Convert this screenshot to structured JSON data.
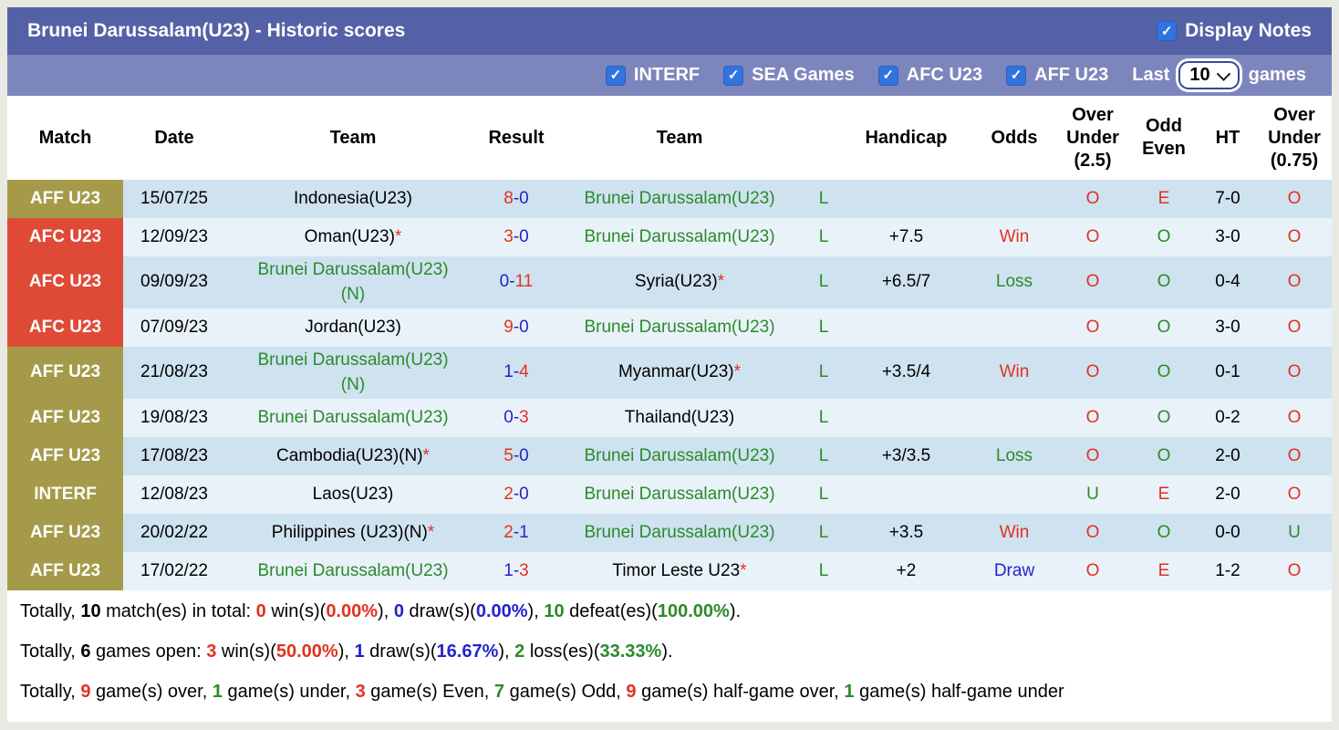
{
  "title_bar": {
    "title": "Brunei Darussalam(U23) - Historic scores",
    "display_notes_label": "Display Notes",
    "display_notes_checked": true
  },
  "filter_bar": {
    "checkboxes": [
      {
        "label": "INTERF",
        "checked": true
      },
      {
        "label": "SEA Games",
        "checked": true
      },
      {
        "label": "AFC U23",
        "checked": true
      },
      {
        "label": "AFF U23",
        "checked": true
      }
    ],
    "last_label": "Last",
    "games_count": "10",
    "games_label": "games"
  },
  "colors": {
    "accent_red": "#e03220",
    "accent_green": "#2b8a2b",
    "accent_blue": "#2323cc",
    "badge_olive": "#a59a4a",
    "badge_red": "#df4a37",
    "title_bg": "#5561a6",
    "filter_bg": "#7d86bc",
    "checkbox_blue": "#3273e0",
    "row_dark": "#cfe2f0",
    "row_light": "#e9f2f9"
  },
  "table": {
    "headers": [
      {
        "key": "match",
        "lines": [
          "Match"
        ]
      },
      {
        "key": "date",
        "lines": [
          "Date"
        ]
      },
      {
        "key": "team1",
        "lines": [
          "Team"
        ]
      },
      {
        "key": "result",
        "lines": [
          "Result"
        ]
      },
      {
        "key": "team2",
        "lines": [
          "Team"
        ]
      },
      {
        "key": "letter",
        "lines": [
          ""
        ]
      },
      {
        "key": "handicap",
        "lines": [
          "Handicap"
        ]
      },
      {
        "key": "odds",
        "lines": [
          "Odds"
        ]
      },
      {
        "key": "over-under-2-5",
        "lines": [
          "Over",
          "Under",
          "(2.5)"
        ]
      },
      {
        "key": "odd-even",
        "lines": [
          "Odd",
          "Even"
        ]
      },
      {
        "key": "ht",
        "lines": [
          "HT"
        ]
      },
      {
        "key": "over-under-0-75",
        "lines": [
          "Over",
          "Under",
          "(0.75)"
        ]
      }
    ],
    "rows": [
      {
        "competition": "AFF U23",
        "badge": "olive",
        "date": "15/07/25",
        "team1": {
          "lines": [
            "Indonesia(U23)"
          ],
          "color": "black",
          "star": false
        },
        "result": {
          "left": "8",
          "left_color": "red",
          "right": "0",
          "right_color": "blue"
        },
        "team2": {
          "lines": [
            "Brunei Darussalam(U23)"
          ],
          "color": "green",
          "star": false
        },
        "letter": "L",
        "handicap": "",
        "odds": {
          "text": "",
          "color": "black"
        },
        "ou25": {
          "text": "O",
          "color": "red"
        },
        "oddeven": {
          "text": "E",
          "color": "red"
        },
        "ht": "7-0",
        "ou075": {
          "text": "O",
          "color": "red"
        },
        "shade": "dark"
      },
      {
        "competition": "AFC U23",
        "badge": "red",
        "date": "12/09/23",
        "team1": {
          "lines": [
            "Oman(U23)"
          ],
          "color": "black",
          "star": true
        },
        "result": {
          "left": "3",
          "left_color": "red",
          "right": "0",
          "right_color": "blue"
        },
        "team2": {
          "lines": [
            "Brunei Darussalam(U23)"
          ],
          "color": "green",
          "star": false
        },
        "letter": "L",
        "handicap": "+7.5",
        "odds": {
          "text": "Win",
          "color": "red"
        },
        "ou25": {
          "text": "O",
          "color": "red"
        },
        "oddeven": {
          "text": "O",
          "color": "green"
        },
        "ht": "3-0",
        "ou075": {
          "text": "O",
          "color": "red"
        },
        "shade": "light"
      },
      {
        "competition": "AFC U23",
        "badge": "red",
        "date": "09/09/23",
        "team1": {
          "lines": [
            "Brunei Darussalam(U23)",
            "(N)"
          ],
          "color": "green",
          "star": false
        },
        "result": {
          "left": "0",
          "left_color": "blue",
          "right": "11",
          "right_color": "red"
        },
        "team2": {
          "lines": [
            "Syria(U23)"
          ],
          "color": "black",
          "star": true
        },
        "letter": "L",
        "handicap": "+6.5/7",
        "odds": {
          "text": "Loss",
          "color": "green"
        },
        "ou25": {
          "text": "O",
          "color": "red"
        },
        "oddeven": {
          "text": "O",
          "color": "green"
        },
        "ht": "0-4",
        "ou075": {
          "text": "O",
          "color": "red"
        },
        "shade": "dark"
      },
      {
        "competition": "AFC U23",
        "badge": "red",
        "date": "07/09/23",
        "team1": {
          "lines": [
            "Jordan(U23)"
          ],
          "color": "black",
          "star": false
        },
        "result": {
          "left": "9",
          "left_color": "red",
          "right": "0",
          "right_color": "blue"
        },
        "team2": {
          "lines": [
            "Brunei Darussalam(U23)"
          ],
          "color": "green",
          "star": false
        },
        "letter": "L",
        "handicap": "",
        "odds": {
          "text": "",
          "color": "black"
        },
        "ou25": {
          "text": "O",
          "color": "red"
        },
        "oddeven": {
          "text": "O",
          "color": "green"
        },
        "ht": "3-0",
        "ou075": {
          "text": "O",
          "color": "red"
        },
        "shade": "light"
      },
      {
        "competition": "AFF U23",
        "badge": "olive",
        "date": "21/08/23",
        "team1": {
          "lines": [
            "Brunei Darussalam(U23)",
            "(N)"
          ],
          "color": "green",
          "star": false
        },
        "result": {
          "left": "1",
          "left_color": "blue",
          "right": "4",
          "right_color": "red"
        },
        "team2": {
          "lines": [
            "Myanmar(U23)"
          ],
          "color": "black",
          "star": true
        },
        "letter": "L",
        "handicap": "+3.5/4",
        "odds": {
          "text": "Win",
          "color": "red"
        },
        "ou25": {
          "text": "O",
          "color": "red"
        },
        "oddeven": {
          "text": "O",
          "color": "green"
        },
        "ht": "0-1",
        "ou075": {
          "text": "O",
          "color": "red"
        },
        "shade": "dark"
      },
      {
        "competition": "AFF U23",
        "badge": "olive",
        "date": "19/08/23",
        "team1": {
          "lines": [
            "Brunei Darussalam(U23)"
          ],
          "color": "green",
          "star": false
        },
        "result": {
          "left": "0",
          "left_color": "blue",
          "right": "3",
          "right_color": "red"
        },
        "team2": {
          "lines": [
            "Thailand(U23)"
          ],
          "color": "black",
          "star": false
        },
        "letter": "L",
        "handicap": "",
        "odds": {
          "text": "",
          "color": "black"
        },
        "ou25": {
          "text": "O",
          "color": "red"
        },
        "oddeven": {
          "text": "O",
          "color": "green"
        },
        "ht": "0-2",
        "ou075": {
          "text": "O",
          "color": "red"
        },
        "shade": "light"
      },
      {
        "competition": "AFF U23",
        "badge": "olive",
        "date": "17/08/23",
        "team1": {
          "lines": [
            "Cambodia(U23)(N)"
          ],
          "color": "black",
          "star": true
        },
        "result": {
          "left": "5",
          "left_color": "red",
          "right": "0",
          "right_color": "blue"
        },
        "team2": {
          "lines": [
            "Brunei Darussalam(U23)"
          ],
          "color": "green",
          "star": false
        },
        "letter": "L",
        "handicap": "+3/3.5",
        "odds": {
          "text": "Loss",
          "color": "green"
        },
        "ou25": {
          "text": "O",
          "color": "red"
        },
        "oddeven": {
          "text": "O",
          "color": "green"
        },
        "ht": "2-0",
        "ou075": {
          "text": "O",
          "color": "red"
        },
        "shade": "dark"
      },
      {
        "competition": "INTERF",
        "badge": "olive",
        "date": "12/08/23",
        "team1": {
          "lines": [
            "Laos(U23)"
          ],
          "color": "black",
          "star": false
        },
        "result": {
          "left": "2",
          "left_color": "red",
          "right": "0",
          "right_color": "blue"
        },
        "team2": {
          "lines": [
            "Brunei Darussalam(U23)"
          ],
          "color": "green",
          "star": false
        },
        "letter": "L",
        "handicap": "",
        "odds": {
          "text": "",
          "color": "black"
        },
        "ou25": {
          "text": "U",
          "color": "green"
        },
        "oddeven": {
          "text": "E",
          "color": "red"
        },
        "ht": "2-0",
        "ou075": {
          "text": "O",
          "color": "red"
        },
        "shade": "light"
      },
      {
        "competition": "AFF U23",
        "badge": "olive",
        "date": "20/02/22",
        "team1": {
          "lines": [
            "Philippines (U23)(N)"
          ],
          "color": "black",
          "star": true
        },
        "result": {
          "left": "2",
          "left_color": "red",
          "right": "1",
          "right_color": "blue"
        },
        "team2": {
          "lines": [
            "Brunei Darussalam(U23)"
          ],
          "color": "green",
          "star": false
        },
        "letter": "L",
        "handicap": "+3.5",
        "odds": {
          "text": "Win",
          "color": "red"
        },
        "ou25": {
          "text": "O",
          "color": "red"
        },
        "oddeven": {
          "text": "O",
          "color": "green"
        },
        "ht": "0-0",
        "ou075": {
          "text": "U",
          "color": "green"
        },
        "shade": "dark"
      },
      {
        "competition": "AFF U23",
        "badge": "olive",
        "date": "17/02/22",
        "team1": {
          "lines": [
            "Brunei Darussalam(U23)"
          ],
          "color": "green",
          "star": false
        },
        "result": {
          "left": "1",
          "left_color": "blue",
          "right": "3",
          "right_color": "red"
        },
        "team2": {
          "lines": [
            "Timor Leste U23"
          ],
          "color": "black",
          "star": true
        },
        "letter": "L",
        "handicap": "+2",
        "odds": {
          "text": "Draw",
          "color": "blue"
        },
        "ou25": {
          "text": "O",
          "color": "red"
        },
        "oddeven": {
          "text": "E",
          "color": "red"
        },
        "ht": "1-2",
        "ou075": {
          "text": "O",
          "color": "red"
        },
        "shade": "light"
      }
    ]
  },
  "summary": [
    [
      {
        "t": "Totally, ",
        "c": "black"
      },
      {
        "t": "10",
        "c": "black",
        "bold": true
      },
      {
        "t": " match(es) in total: ",
        "c": "black"
      },
      {
        "t": "0",
        "c": "red",
        "bold": true
      },
      {
        "t": " win(s)(",
        "c": "black"
      },
      {
        "t": "0.00%",
        "c": "red",
        "bold": true
      },
      {
        "t": "), ",
        "c": "black"
      },
      {
        "t": "0",
        "c": "blue",
        "bold": true
      },
      {
        "t": " draw(s)(",
        "c": "black"
      },
      {
        "t": "0.00%",
        "c": "blue",
        "bold": true
      },
      {
        "t": "), ",
        "c": "black"
      },
      {
        "t": "10",
        "c": "green",
        "bold": true
      },
      {
        "t": " defeat(es)(",
        "c": "black"
      },
      {
        "t": "100.00%",
        "c": "green",
        "bold": true
      },
      {
        "t": ").",
        "c": "black"
      }
    ],
    [
      {
        "t": "Totally, ",
        "c": "black"
      },
      {
        "t": "6",
        "c": "black",
        "bold": true
      },
      {
        "t": " games open: ",
        "c": "black"
      },
      {
        "t": "3",
        "c": "red",
        "bold": true
      },
      {
        "t": " win(s)(",
        "c": "black"
      },
      {
        "t": "50.00%",
        "c": "red",
        "bold": true
      },
      {
        "t": "), ",
        "c": "black"
      },
      {
        "t": "1",
        "c": "blue",
        "bold": true
      },
      {
        "t": " draw(s)(",
        "c": "black"
      },
      {
        "t": "16.67%",
        "c": "blue",
        "bold": true
      },
      {
        "t": "), ",
        "c": "black"
      },
      {
        "t": "2",
        "c": "green",
        "bold": true
      },
      {
        "t": " loss(es)(",
        "c": "black"
      },
      {
        "t": "33.33%",
        "c": "green",
        "bold": true
      },
      {
        "t": ").",
        "c": "black"
      }
    ],
    [
      {
        "t": "Totally, ",
        "c": "black"
      },
      {
        "t": "9",
        "c": "red",
        "bold": true
      },
      {
        "t": " game(s) over, ",
        "c": "black"
      },
      {
        "t": "1",
        "c": "green",
        "bold": true
      },
      {
        "t": " game(s) under, ",
        "c": "black"
      },
      {
        "t": "3",
        "c": "red",
        "bold": true
      },
      {
        "t": " game(s) Even, ",
        "c": "black"
      },
      {
        "t": "7",
        "c": "green",
        "bold": true
      },
      {
        "t": " game(s) Odd, ",
        "c": "black"
      },
      {
        "t": "9",
        "c": "red",
        "bold": true
      },
      {
        "t": " game(s) half-game over, ",
        "c": "black"
      },
      {
        "t": "1",
        "c": "green",
        "bold": true
      },
      {
        "t": " game(s) half-game under",
        "c": "black"
      }
    ]
  ]
}
